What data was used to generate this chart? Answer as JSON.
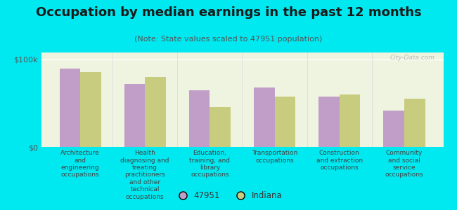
{
  "title": "Occupation by median earnings in the past 12 months",
  "subtitle": "(Note: State values scaled to 47951 population)",
  "categories": [
    "Architecture\nand\nengineering\noccupations",
    "Health\ndiagnosing and\ntreating\npractitioners\nand other\ntechnical\noccupations",
    "Education,\ntraining, and\nlibrary\noccupations",
    "Transportation\noccupations",
    "Construction\nand extraction\noccupations",
    "Community\nand social\nservice\noccupations"
  ],
  "values_47951": [
    90000,
    72000,
    65000,
    68000,
    58000,
    42000
  ],
  "values_indiana": [
    86000,
    80000,
    46000,
    58000,
    60000,
    55000
  ],
  "color_47951": "#c09ec8",
  "color_indiana": "#c8cc7e",
  "background_outer": "#00e8f0",
  "background_plot": "#eff4e0",
  "ylim": [
    0,
    108000
  ],
  "ytick_labels": [
    "$0",
    "$100k"
  ],
  "ytick_vals": [
    0,
    100000
  ],
  "watermark": "City-Data.com",
  "legend_label_1": "47951",
  "legend_label_2": "Indiana",
  "title_fontsize": 13,
  "subtitle_fontsize": 8,
  "axis_label_fontsize": 6.5,
  "legend_fontsize": 8.5
}
